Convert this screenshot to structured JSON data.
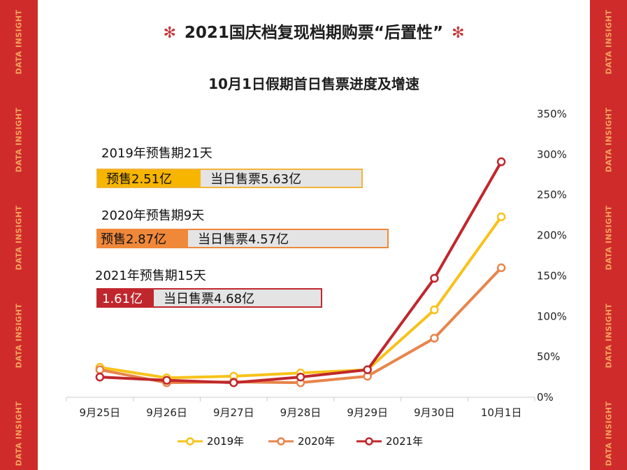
{
  "side_text": "DATA INSIGHT",
  "title": "2021国庆档复现档期购票“后置性”",
  "title_star": "✻",
  "annotations": [
    {
      "label": "2019年预售期21天",
      "presale": "预售2.51亿",
      "day": "当日售票5.63亿",
      "color": "#f7b500"
    },
    {
      "label": "2020年预售期9天",
      "presale": "预售2.87亿",
      "day": "当日售票4.57亿",
      "color": "#f0883a"
    },
    {
      "label": "2021年预售期15天",
      "presale": "1.61亿",
      "day": "当日售票4.68亿",
      "color": "#c0272d"
    }
  ],
  "colors": {
    "side": "#cf2b2b",
    "side_text": "#f0a35c",
    "grid": "#d9d9d9"
  },
  "chart_data": {
    "type": "line",
    "title": "10月1日假期首日售票进度及增速",
    "categories": [
      "9月25日",
      "9月26日",
      "9月27日",
      "9月28日",
      "9月29日",
      "9月30日",
      "10月1日"
    ],
    "ylim": [
      0,
      350
    ],
    "yticks": [
      "0%",
      "50%",
      "100%",
      "150%",
      "200%",
      "250%",
      "300%",
      "350%"
    ],
    "y_axis_side": "right",
    "grid": false,
    "legend_position": "bottom",
    "series": [
      {
        "name": "2019年",
        "color": "#f7c21a",
        "values": [
          37,
          24,
          26,
          30,
          34,
          108,
          223
        ]
      },
      {
        "name": "2020年",
        "color": "#e8844a",
        "values": [
          34,
          18,
          19,
          18,
          26,
          73,
          160
        ]
      },
      {
        "name": "2021年",
        "color": "#c0272d",
        "values": [
          25,
          21,
          18,
          25,
          34,
          147,
          291
        ]
      }
    ]
  }
}
